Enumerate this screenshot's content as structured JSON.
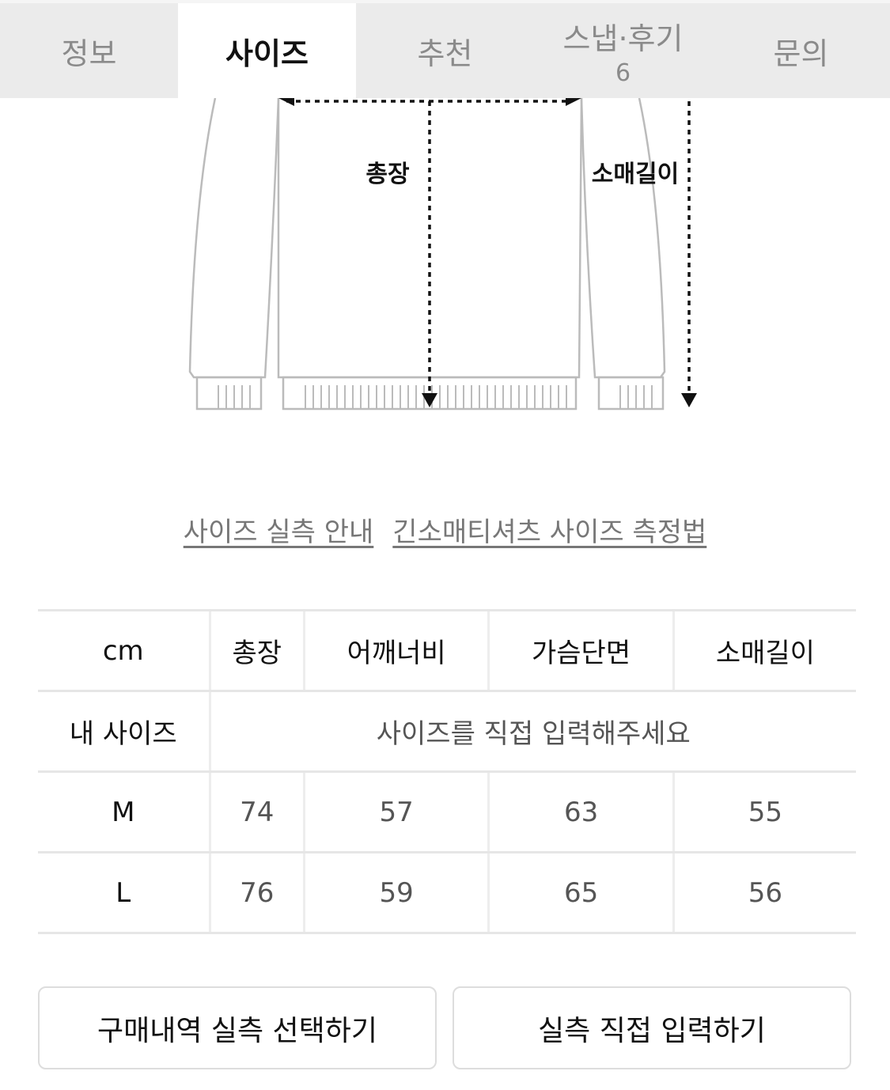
{
  "tabs": [
    {
      "label": "정보"
    },
    {
      "label": "사이즈",
      "active": true
    },
    {
      "label": "추천"
    },
    {
      "label": "스냅·후기",
      "count": "6"
    },
    {
      "label": "문의"
    }
  ],
  "diagram": {
    "length_label": "총장",
    "sleeve_label": "소매길이"
  },
  "links": [
    "사이즈 실측 안내",
    "긴소매티셔츠 사이즈 측정법"
  ],
  "table": {
    "headers": [
      "cm",
      "총장",
      "어깨너비",
      "가슴단면",
      "소매길이"
    ],
    "my_size": {
      "label": "내 사이즈",
      "placeholder": "사이즈를 직접 입력해주세요"
    },
    "rows": [
      {
        "size": "M",
        "values": [
          "74",
          "57",
          "63",
          "55"
        ]
      },
      {
        "size": "L",
        "values": [
          "76",
          "59",
          "65",
          "56"
        ]
      }
    ]
  },
  "buttons": {
    "purchase": "구매내역 실측 선택하기",
    "manual": "실측 직접 입력하기"
  }
}
